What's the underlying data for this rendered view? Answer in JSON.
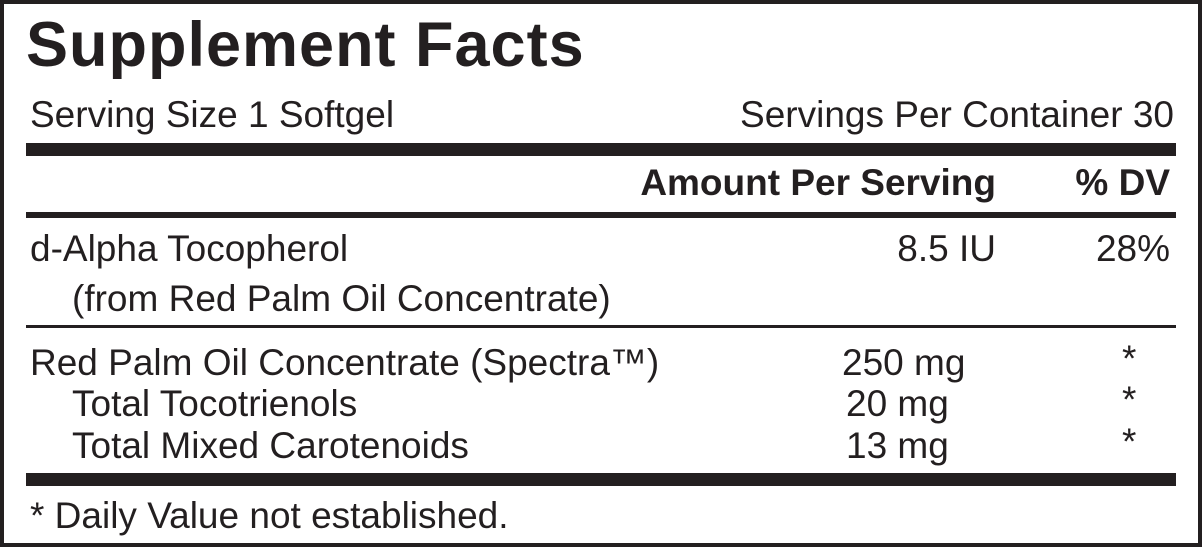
{
  "title": "Supplement Facts",
  "serving_size": "Serving Size 1 Softgel",
  "servings_per_container": "Servings Per Container 30",
  "header": {
    "amount": "Amount Per Serving",
    "dv": "% DV"
  },
  "vitamins": [
    {
      "name": "d-Alpha Tocopherol",
      "sub": "(from Red Palm Oil Concentrate)",
      "amount": "8.5 IU",
      "dv": "28%"
    }
  ],
  "other": [
    {
      "name": "Red Palm Oil Concentrate (Spectra™)",
      "amount": "250 mg",
      "dv": "*"
    },
    {
      "name": "Total Tocotrienols",
      "amount": "20 mg",
      "dv": "*"
    },
    {
      "name": "Total Mixed Carotenoids",
      "amount": "13 mg",
      "dv": "*"
    }
  ],
  "footnote": "* Daily Value not established."
}
